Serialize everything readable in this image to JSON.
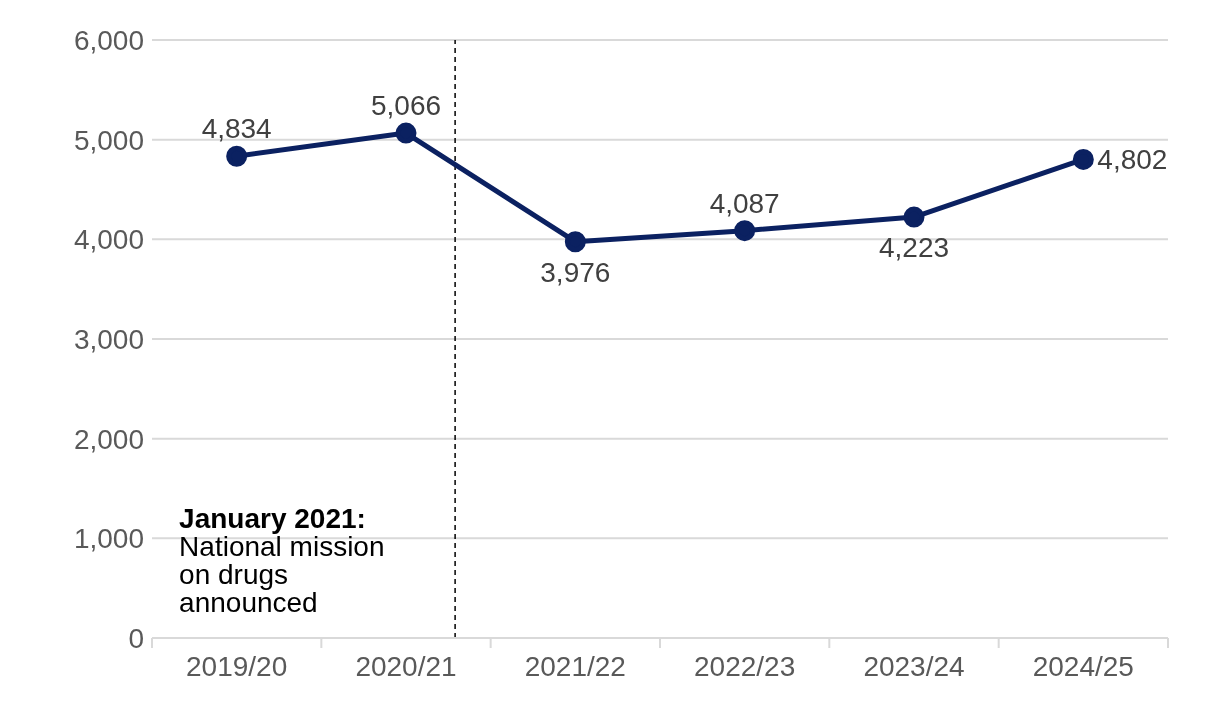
{
  "chart_data": {
    "type": "line",
    "categories": [
      "2019/20",
      "2020/21",
      "2021/22",
      "2022/23",
      "2023/24",
      "2024/25"
    ],
    "series": [
      {
        "color": "#0b2161",
        "values": [
          4834,
          5066,
          3976,
          4087,
          4223,
          4802
        ]
      }
    ],
    "ylim": [
      0,
      6000
    ],
    "yticks": [
      {
        "value": 0,
        "label": "0"
      },
      {
        "value": 1000,
        "label": "1,000"
      },
      {
        "value": 2000,
        "label": "2,000"
      },
      {
        "value": 3000,
        "label": "3,000"
      },
      {
        "value": 4000,
        "label": "4,000"
      },
      {
        "value": 5000,
        "label": "5,000"
      },
      {
        "value": 6000,
        "label": "6,000"
      }
    ],
    "grid": "y",
    "marker": "circle",
    "line_style": "solid",
    "value_labels": [
      "4,834",
      "5,066",
      "3,976",
      "4,087",
      "4,223",
      "4,802"
    ],
    "ref_lines": [
      {
        "axis": "x",
        "value": "2020/21",
        "label": "January 2021: National mission on drugs announced",
        "color": "#000000",
        "line_style": "dashed"
      }
    ]
  }
}
